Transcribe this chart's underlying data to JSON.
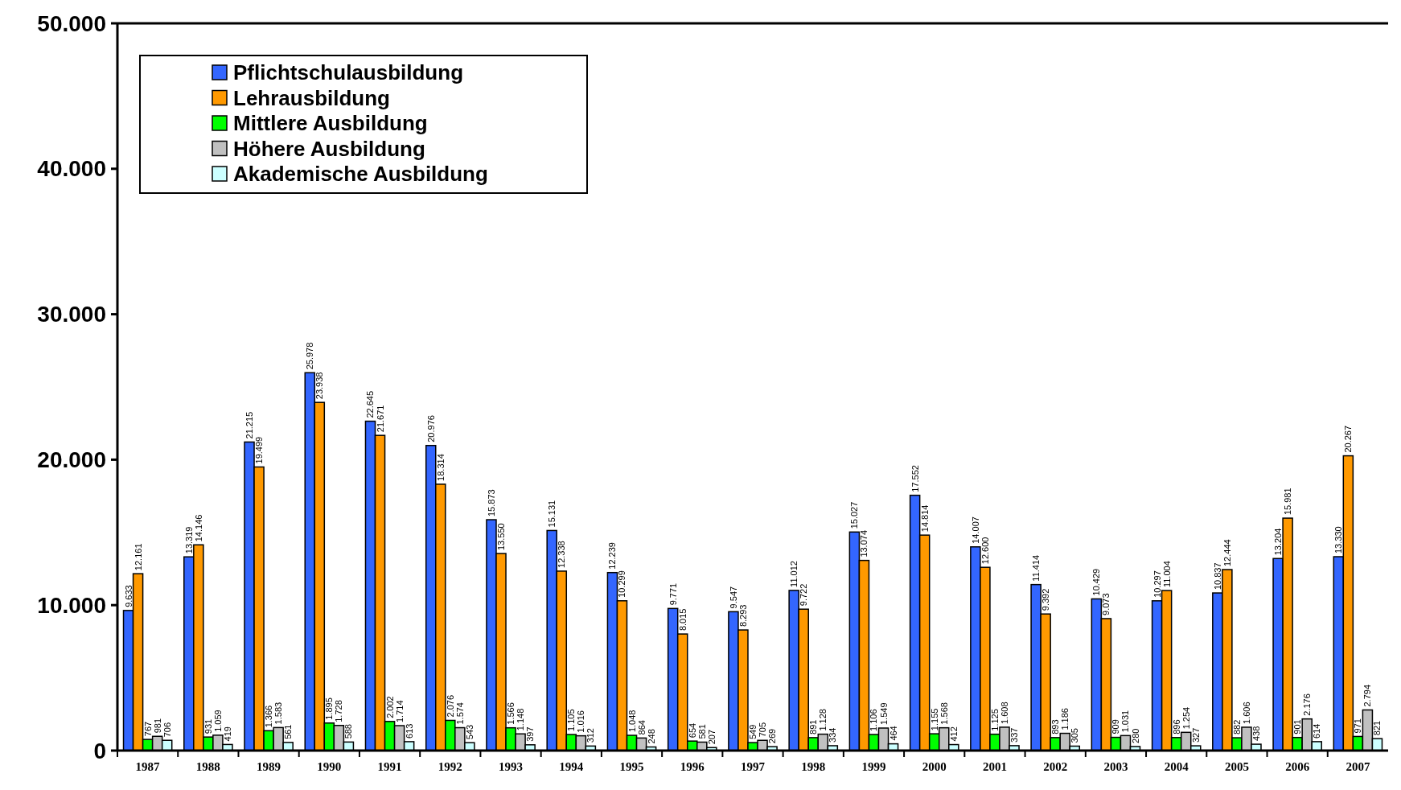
{
  "chart_data": {
    "type": "bar",
    "categories": [
      "1987",
      "1988",
      "1989",
      "1990",
      "1991",
      "1992",
      "1993",
      "1994",
      "1995",
      "1996",
      "1997",
      "1998",
      "1999",
      "2000",
      "2001",
      "2002",
      "2003",
      "2004",
      "2005",
      "2006",
      "2007"
    ],
    "series": [
      {
        "name": "Pflichtschulausbildung",
        "color": "#3366ff",
        "values": [
          9633,
          13319,
          21215,
          25978,
          22645,
          20976,
          15873,
          15131,
          12239,
          9771,
          9547,
          11012,
          15027,
          17552,
          14007,
          11414,
          10429,
          10297,
          10837,
          13204,
          13330
        ],
        "value_labels": [
          "9.633",
          "13.319",
          "21.215",
          "25.978",
          "22.645",
          "20.976",
          "15.873",
          "15.131",
          "12.239",
          "9.771",
          "9.547",
          "11.012",
          "15.027",
          "17.552",
          "14.007",
          "11.414",
          "10.429",
          "10.297",
          "10.837",
          "13.204",
          "13.330"
        ]
      },
      {
        "name": "Lehrausbildung",
        "color": "#ff9900",
        "values": [
          12161,
          14146,
          19499,
          23938,
          21671,
          18314,
          13550,
          12338,
          10299,
          8015,
          8293,
          9722,
          13074,
          14814,
          12600,
          9392,
          9073,
          11004,
          12444,
          15981,
          20267
        ],
        "value_labels": [
          "12.161",
          "14.146",
          "19.499",
          "23.938",
          "21.671",
          "18.314",
          "13.550",
          "12.338",
          "10.299",
          "8.015",
          "8.293",
          "9.722",
          "13.074",
          "14.814",
          "12.600",
          "9.392",
          "9.073",
          "11.004",
          "12.444",
          "15.981",
          "20.267"
        ]
      },
      {
        "name": "Mittlere Ausbildung",
        "color": "#00ff00",
        "values": [
          767,
          931,
          1366,
          1895,
          2002,
          2076,
          1566,
          1105,
          1048,
          654,
          549,
          891,
          1106,
          1155,
          1125,
          893,
          909,
          896,
          882,
          901,
          971
        ],
        "value_labels": [
          "767",
          "931",
          "1.366",
          "1.895",
          "2.002",
          "2.076",
          "1.566",
          "1.105",
          "1.048",
          "654",
          "549",
          "891",
          "1.106",
          "1.155",
          "1.125",
          "893",
          "909",
          "896",
          "882",
          "901",
          "971"
        ]
      },
      {
        "name": "Höhere Ausbildung",
        "color": "#c0c0c0",
        "values": [
          981,
          1059,
          1583,
          1728,
          1714,
          1574,
          1148,
          1016,
          864,
          581,
          705,
          1128,
          1549,
          1568,
          1608,
          1186,
          1031,
          1254,
          1606,
          2176,
          2794
        ],
        "value_labels": [
          "981",
          "1.059",
          "1.583",
          "1.728",
          "1.714",
          "1.574",
          "1.148",
          "1.016",
          "864",
          "581",
          "705",
          "1.128",
          "1.549",
          "1.568",
          "1.608",
          "1.186",
          "1.031",
          "1.254",
          "1.606",
          "2.176",
          "2.794"
        ]
      },
      {
        "name": "Akademische Ausbildung",
        "color": "#ccffff",
        "values": [
          706,
          419,
          561,
          588,
          613,
          543,
          397,
          312,
          248,
          207,
          269,
          334,
          464,
          412,
          337,
          305,
          280,
          327,
          438,
          614,
          821
        ],
        "value_labels": [
          "706",
          "419",
          "561",
          "588",
          "613",
          "543",
          "397",
          "312",
          "248",
          "207",
          "269",
          "334",
          "464",
          "412",
          "337",
          "305",
          "280",
          "327",
          "438",
          "614",
          "821"
        ]
      }
    ],
    "ylim": [
      0,
      50000
    ],
    "yticks": [
      {
        "value": 0,
        "label": "0"
      },
      {
        "value": 10000,
        "label": "10.000"
      },
      {
        "value": 20000,
        "label": "20.000"
      },
      {
        "value": 30000,
        "label": "30.000"
      },
      {
        "value": 40000,
        "label": "40.000"
      },
      {
        "value": 50000,
        "label": "50.000"
      }
    ],
    "legend": "top left",
    "grid": false
  }
}
